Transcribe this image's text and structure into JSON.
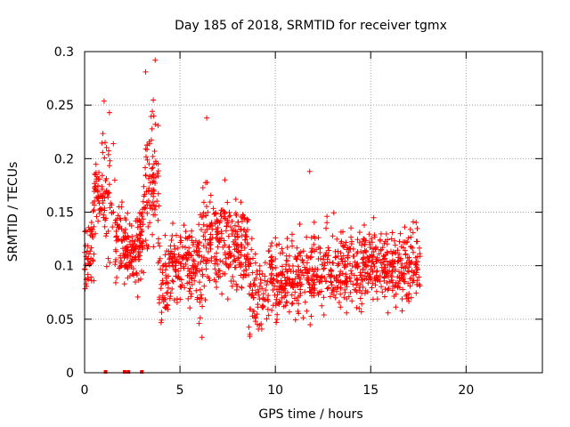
{
  "chart_data": {
    "type": "scatter",
    "title": "Day 185 of 2018, SRMTID for receiver tgmx",
    "xlabel": "GPS time / hours",
    "ylabel": "SRMTID / TECUs",
    "xlim": [
      0,
      24
    ],
    "ylim": [
      0,
      0.3
    ],
    "xticks": [
      0,
      5,
      10,
      15,
      20
    ],
    "xtick_labels": [
      "0",
      "5",
      "10",
      "15",
      "20"
    ],
    "yticks": [
      0,
      0.05,
      0.1,
      0.15,
      0.2,
      0.25,
      0.3
    ],
    "ytick_labels": [
      "0",
      "0.05",
      "0.1",
      "0.15",
      "0.2",
      "0.25",
      "0.3"
    ],
    "grid": true,
    "marker": "plus",
    "color": "#ff0000",
    "series": [
      {
        "name": "SRMTID",
        "x_range": [
          0,
          17.6
        ],
        "y_range_observed": [
          0,
          0.292
        ],
        "note_points": [
          {
            "x": 3.7,
            "y": 0.292
          },
          {
            "x": 3.2,
            "y": 0.281
          },
          {
            "x": 1.3,
            "y": 0.243
          },
          {
            "x": 6.4,
            "y": 0.238
          },
          {
            "x": 11.8,
            "y": 0.188
          },
          {
            "x": 1.1,
            "y": 0
          },
          {
            "x": 2.1,
            "y": 0
          },
          {
            "x": 2.3,
            "y": 0
          },
          {
            "x": 3.0,
            "y": 0
          }
        ]
      }
    ]
  }
}
